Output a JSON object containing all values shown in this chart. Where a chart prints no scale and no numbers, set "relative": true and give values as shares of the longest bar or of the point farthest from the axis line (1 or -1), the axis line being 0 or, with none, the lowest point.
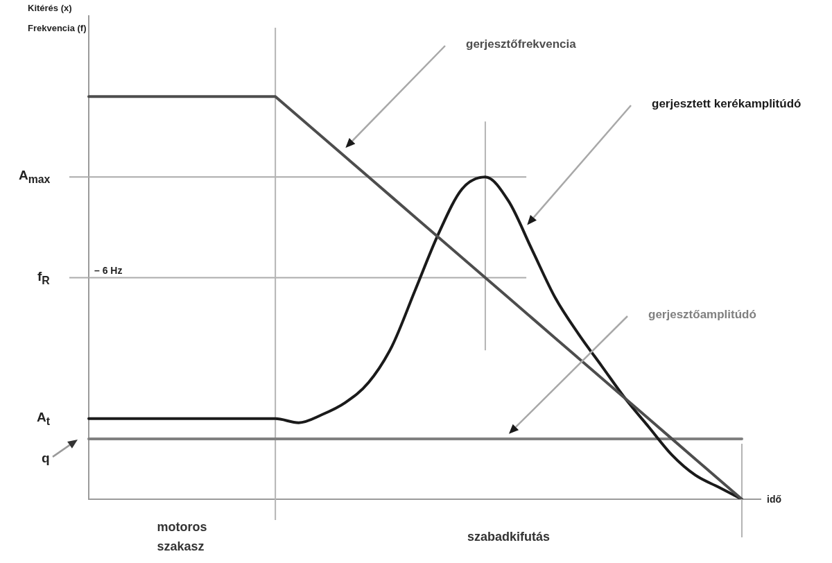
{
  "chart_data": {
    "type": "line",
    "relative": true,
    "xlabel": "idő",
    "categories": [
      null,
      null,
      null,
      null,
      null,
      null,
      null,
      null,
      null,
      null,
      null,
      null,
      null,
      null,
      null,
      null,
      null,
      null,
      null,
      null,
      null,
      null,
      null,
      null,
      null,
      null,
      null,
      null,
      null
    ],
    "series": [
      {
        "name": "gerjesztőfrekvencia",
        "color": "#4d4d4d",
        "values": [
          1,
          1,
          1,
          1,
          1,
          1,
          1,
          1,
          1,
          0.95,
          0.9,
          0.85,
          0.8,
          0.75,
          0.7,
          0.65,
          0.6,
          0.55,
          0.5,
          0.45,
          0.4,
          0.35,
          0.3,
          0.25,
          0.2,
          0.15,
          0.1,
          0.05,
          0
        ]
      },
      {
        "name": "gerjesztett kerékamplitúdó",
        "color": "#1a1a1a",
        "values": [
          0.2,
          0.2,
          0.2,
          0.2,
          0.2,
          0.2,
          0.2,
          0.2,
          0.2,
          0.19,
          0.21,
          0.24,
          0.29,
          0.38,
          0.52,
          0.66,
          0.77,
          0.8,
          0.74,
          0.62,
          0.5,
          0.41,
          0.33,
          0.25,
          0.18,
          0.11,
          0.06,
          0.03,
          0
        ]
      },
      {
        "name": "gerjesztőamplitúdó",
        "color": "#808080",
        "values": [
          0.15,
          0.15,
          0.15,
          0.15,
          0.15,
          0.15,
          0.15,
          0.15,
          0.15,
          0.15,
          0.15,
          0.15,
          0.15,
          0.15,
          0.15,
          0.15,
          0.15,
          0.15,
          0.15,
          0.15,
          0.15,
          0.15,
          0.15,
          0.15,
          0.15,
          0.15,
          0.15,
          0.15,
          0.15
        ]
      }
    ],
    "ref_lines": [
      {
        "axis": "y",
        "value": 0.8,
        "label": "A$_{max}$"
      },
      {
        "axis": "y",
        "value": 0.55,
        "label": "f$_{R}$"
      }
    ],
    "annotations": [
      "Kitérés (x)",
      "Frekvencia (f)",
      {
        "text": "– 6 Hz",
        "y": 0.55
      },
      "A$_{t}$",
      "q",
      "motoros szakasz",
      "szabadkifutás"
    ],
    "marker": "none"
  }
}
